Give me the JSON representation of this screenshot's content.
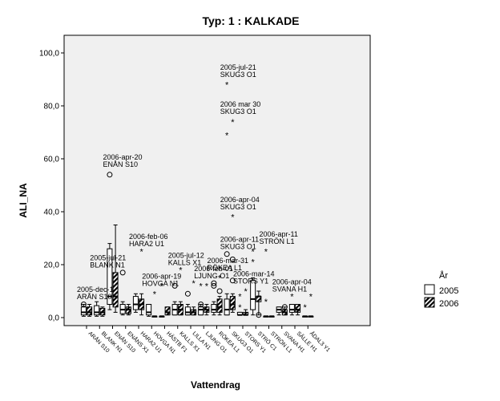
{
  "chart_data": {
    "type": "boxplot",
    "title": "Typ: 1 : KALKADE",
    "xlabel": "Vattendrag",
    "ylabel": "ALI_NA",
    "ylim": [
      0,
      100
    ],
    "yticks": [
      "0,0",
      "20,0",
      "40,0",
      "60,0",
      "80,0",
      "100,0"
    ],
    "grid": false,
    "legend": {
      "title": "År",
      "placement": "right",
      "entries": [
        "2005",
        "2006"
      ]
    },
    "categories": [
      "ARÅN S10",
      "BLANK N1",
      "ENÅN S10",
      "ENÅNS X1",
      "HARA2 U1",
      "HOVGA N1",
      "HÄSTB F1",
      "KALLS X1",
      "LILLA N1",
      "LJUNG O1",
      "RÖKEA L1",
      "SKUG3 O1",
      "STORS Y1",
      "STRÖ C1",
      "STRÖN L1",
      "SVANA H1",
      "SÄLLE H1",
      "ÅDAL3 Y1"
    ],
    "series": [
      {
        "name": "2005",
        "boxes": [
          {
            "cat": 0,
            "min": 0.5,
            "q1": 1,
            "median": 2,
            "q3": 4,
            "max": 5,
            "outliers": [
              5
            ]
          },
          {
            "cat": 1,
            "min": 0.5,
            "q1": 1,
            "median": 2,
            "q3": 4.5,
            "max": 6
          },
          {
            "cat": 2,
            "min": 3,
            "q1": 5,
            "median": 8,
            "q3": 26,
            "max": 28,
            "outliers": [
              54
            ]
          },
          {
            "cat": 3,
            "min": 1,
            "q1": 1.5,
            "median": 3,
            "q3": 5,
            "max": 6,
            "outliers": [
              17
            ]
          },
          {
            "cat": 4,
            "min": 2,
            "q1": 3,
            "median": 5,
            "q3": 8,
            "max": 9
          },
          {
            "cat": 5,
            "min": 0.5,
            "q1": 1,
            "median": 2,
            "q3": 5,
            "max": 5
          },
          {
            "cat": 6,
            "min": 0.5,
            "q1": 0.5,
            "median": 0.5,
            "q3": 0.5,
            "max": 0.5,
            "extremes": [
              12
            ]
          },
          {
            "cat": 7,
            "min": 1,
            "q1": 1,
            "median": 3,
            "q3": 5,
            "max": 6,
            "outliers": [
              12
            ]
          },
          {
            "cat": 8,
            "min": 1,
            "q1": 1,
            "median": 2,
            "q3": 4,
            "max": 5,
            "outliers": [
              9
            ]
          },
          {
            "cat": 9,
            "min": 1,
            "q1": 1,
            "median": 3,
            "q3": 4,
            "max": 5,
            "outliers": [
              5
            ],
            "extremes": [
              12
            ]
          },
          {
            "cat": 10,
            "min": 1,
            "q1": 2,
            "median": 3,
            "q3": 5,
            "max": 6,
            "outliers": [
              12,
              13
            ]
          },
          {
            "cat": 11,
            "min": 1,
            "q1": 1,
            "median": 3,
            "q3": 7,
            "max": 9,
            "outliers": [
              24
            ],
            "extremes": [
              69,
              88
            ]
          },
          {
            "cat": 12,
            "min": 1,
            "q1": 1,
            "median": 1,
            "q3": 2,
            "max": 2,
            "extremes": [
              4,
              8
            ]
          },
          {
            "cat": 13,
            "min": 1,
            "q1": 3,
            "median": 7,
            "q3": 14,
            "max": 15,
            "extremes": [
              21,
              25
            ]
          },
          {
            "cat": 14,
            "min": 0.5,
            "q1": 0.5,
            "median": 0.5,
            "q3": 0.5,
            "max": 0.5,
            "extremes": [
              6,
              25
            ]
          },
          {
            "cat": 15,
            "min": 1,
            "q1": 2,
            "median": 3,
            "q3": 4,
            "max": 4
          },
          {
            "cat": 16,
            "min": 1,
            "q1": 2,
            "median": 3,
            "q3": 5,
            "max": 5,
            "extremes": [
              8
            ]
          },
          {
            "cat": 17,
            "min": 0.5,
            "q1": 0.5,
            "median": 0.5,
            "q3": 0.5,
            "max": 0.5,
            "extremes": [
              4
            ]
          }
        ]
      },
      {
        "name": "2006",
        "boxes": [
          {
            "cat": 0,
            "min": 0.5,
            "q1": 1,
            "median": 2,
            "q3": 4,
            "max": 5
          },
          {
            "cat": 1,
            "min": 0.5,
            "q1": 1,
            "median": 2,
            "q3": 3.5,
            "max": 4
          },
          {
            "cat": 2,
            "min": 2,
            "q1": 4,
            "median": 8,
            "q3": 17,
            "max": 35
          },
          {
            "cat": 3,
            "min": 1,
            "q1": 1.5,
            "median": 3,
            "q3": 4,
            "max": 5
          },
          {
            "cat": 4,
            "min": 1,
            "q1": 3,
            "median": 5,
            "q3": 7,
            "max": 9,
            "extremes": [
              25
            ]
          },
          {
            "cat": 5,
            "min": 0.5,
            "q1": 0.5,
            "median": 0.5,
            "q3": 0.5,
            "max": 0.5,
            "extremes": [
              9
            ]
          },
          {
            "cat": 6,
            "min": 1,
            "q1": 1,
            "median": 2,
            "q3": 4,
            "max": 4
          },
          {
            "cat": 7,
            "min": 1,
            "q1": 1,
            "median": 3,
            "q3": 5,
            "max": 6,
            "extremes": [
              18
            ]
          },
          {
            "cat": 8,
            "min": 1,
            "q1": 1,
            "median": 2,
            "q3": 3,
            "max": 4,
            "extremes": [
              13
            ]
          },
          {
            "cat": 9,
            "min": 1,
            "q1": 2,
            "median": 3,
            "q3": 4,
            "max": 5,
            "extremes": [
              12
            ]
          },
          {
            "cat": 10,
            "min": 1,
            "q1": 2,
            "median": 4,
            "q3": 7,
            "max": 8,
            "outliers": [
              10
            ],
            "extremes": [
              15
            ]
          },
          {
            "cat": 11,
            "min": 2,
            "q1": 3,
            "median": 5,
            "q3": 8,
            "max": 9,
            "outliers": [
              14,
              22
            ],
            "extremes": [
              38,
              74
            ]
          },
          {
            "cat": 12,
            "min": 1,
            "q1": 1,
            "median": 1,
            "q3": 2,
            "max": 3,
            "extremes": [
              10
            ]
          },
          {
            "cat": 13,
            "min": 1,
            "q1": 6,
            "median": 8,
            "q3": 8,
            "max": 10,
            "outliers": [
              1
            ]
          },
          {
            "cat": 14,
            "min": 0.5,
            "q1": 0.5,
            "median": 0.5,
            "q3": 0.5,
            "max": 0.5
          },
          {
            "cat": 15,
            "min": 1,
            "q1": 1,
            "median": 2,
            "q3": 3,
            "max": 4,
            "outliers": [
              4
            ]
          },
          {
            "cat": 16,
            "min": 1,
            "q1": 2,
            "median": 3,
            "q3": 5,
            "max": 5
          },
          {
            "cat": 17,
            "min": 0.5,
            "q1": 0.5,
            "median": 0.5,
            "q3": 0.5,
            "max": 0.5,
            "extremes": [
              8
            ]
          }
        ]
      }
    ],
    "annotations": [
      {
        "text": [
          "2005-dec-1",
          "ARÅN S10"
        ],
        "cat": 0,
        "y": 6
      },
      {
        "text": [
          "2005-jul-21",
          "BLANK N1"
        ],
        "cat": 1,
        "y": 18
      },
      {
        "text": [
          "2006-apr-20",
          "ENÅN S10"
        ],
        "cat": 2,
        "y": 56
      },
      {
        "text": [
          "2006-feb-06",
          "HARA2 U1"
        ],
        "cat": 4,
        "y": 26
      },
      {
        "text": [
          "2006-apr-19",
          "HOVGA N1"
        ],
        "cat": 5,
        "y": 11
      },
      {
        "text": [
          "2005-jul-12",
          "KALLS X1"
        ],
        "cat": 7,
        "y": 19
      },
      {
        "text": [
          "2006-feb-01",
          "LJUNG O1"
        ],
        "cat": 9,
        "y": 14
      },
      {
        "text": [
          "2006-mar-31",
          "RÖKEA L1"
        ],
        "cat": 10,
        "y": 17
      },
      {
        "text": [
          "2005-jul-21",
          "SKUG3 O1"
        ],
        "cat": 11,
        "y": 90
      },
      {
        "text": [
          "2006 mar 30",
          "SKUG3 O1"
        ],
        "cat": 11,
        "y": 76
      },
      {
        "text": [
          "2006-apr-04",
          "SKUG3 O1"
        ],
        "cat": 11,
        "y": 40
      },
      {
        "text": [
          "2006-apr-11",
          "SKUG3 O1"
        ],
        "cat": 11,
        "y": 25
      },
      {
        "text": [
          "2006-mar-14",
          "STORS Y1"
        ],
        "cat": 12,
        "y": 12
      },
      {
        "text": [
          "2006-apr-11",
          "STRÖN L1"
        ],
        "cat": 14,
        "y": 27
      },
      {
        "text": [
          "2006-apr-04",
          "SVANA H1"
        ],
        "cat": 15,
        "y": 9
      }
    ]
  }
}
